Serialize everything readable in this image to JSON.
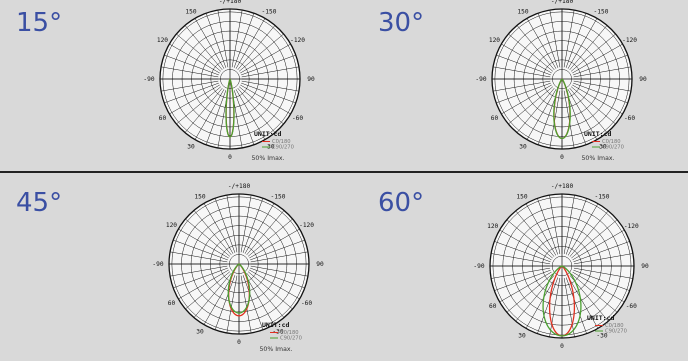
{
  "chart_data": [
    {
      "type": "polar",
      "panel_label": "15°",
      "angle_labels": [
        "-/+180",
        "150",
        "120",
        "90",
        "60",
        "30",
        "0",
        "-30",
        "-60",
        "-90",
        "-120",
        "-150"
      ],
      "unit": "UNIT:cd",
      "legend": [
        {
          "name": "C0/180",
          "color": "#e03020"
        },
        {
          "name": "C90/270",
          "color": "#4aa030"
        }
      ],
      "note": "50% Imax.",
      "series": [
        {
          "name": "C0/180",
          "color": "#e03020",
          "beam_half_angle_deg": 7.5,
          "relative_peak": 0.83
        },
        {
          "name": "C90/270",
          "color": "#4aa030",
          "beam_half_angle_deg": 7.5,
          "relative_peak": 0.83
        }
      ]
    },
    {
      "type": "polar",
      "panel_label": "30°",
      "angle_labels": [
        "-/+180",
        "150",
        "120",
        "90",
        "60",
        "30",
        "0",
        "-30",
        "-60",
        "-90",
        "-120",
        "-150"
      ],
      "unit": "UNIT:cd",
      "legend": [
        {
          "name": "C0/180",
          "color": "#e03020"
        },
        {
          "name": "C90/270",
          "color": "#4aa030"
        }
      ],
      "note": "50% Imax.",
      "series": [
        {
          "name": "C0/180",
          "color": "#e03020",
          "beam_half_angle_deg": 15,
          "relative_peak": 0.85
        },
        {
          "name": "C90/270",
          "color": "#4aa030",
          "beam_half_angle_deg": 15,
          "relative_peak": 0.85
        }
      ]
    },
    {
      "type": "polar",
      "panel_label": "45°",
      "angle_labels": [
        "-/+180",
        "150",
        "120",
        "90",
        "60",
        "30",
        "0",
        "-30",
        "-60",
        "-90",
        "-120",
        "-150"
      ],
      "unit": "UNIT:cd",
      "legend": [
        {
          "name": "C0/180",
          "color": "#e03020"
        },
        {
          "name": "C90/270",
          "color": "#4aa030"
        }
      ],
      "note": "50% Imax.",
      "series": [
        {
          "name": "C0/180",
          "color": "#e03020",
          "beam_half_angle_deg": 22.5,
          "relative_peak": 0.74
        },
        {
          "name": "C90/270",
          "color": "#4aa030",
          "beam_half_angle_deg": 24,
          "relative_peak": 0.7
        }
      ]
    },
    {
      "type": "polar",
      "panel_label": "60°",
      "angle_labels": [
        "-/+180",
        "150",
        "120",
        "90",
        "60",
        "30",
        "0",
        "-30",
        "-60",
        "-90",
        "-120",
        "-150"
      ],
      "unit": "UNIT:cd",
      "legend": [
        {
          "name": "C0/180",
          "color": "#e03020"
        },
        {
          "name": "C90/270",
          "color": "#4aa030"
        }
      ],
      "note": "",
      "series": [
        {
          "name": "C0/180",
          "color": "#e03020",
          "beam_half_angle_deg": 20,
          "relative_peak": 0.97
        },
        {
          "name": "C90/270",
          "color": "#4aa030",
          "beam_half_angle_deg": 30,
          "relative_peak": 0.97
        }
      ]
    }
  ]
}
